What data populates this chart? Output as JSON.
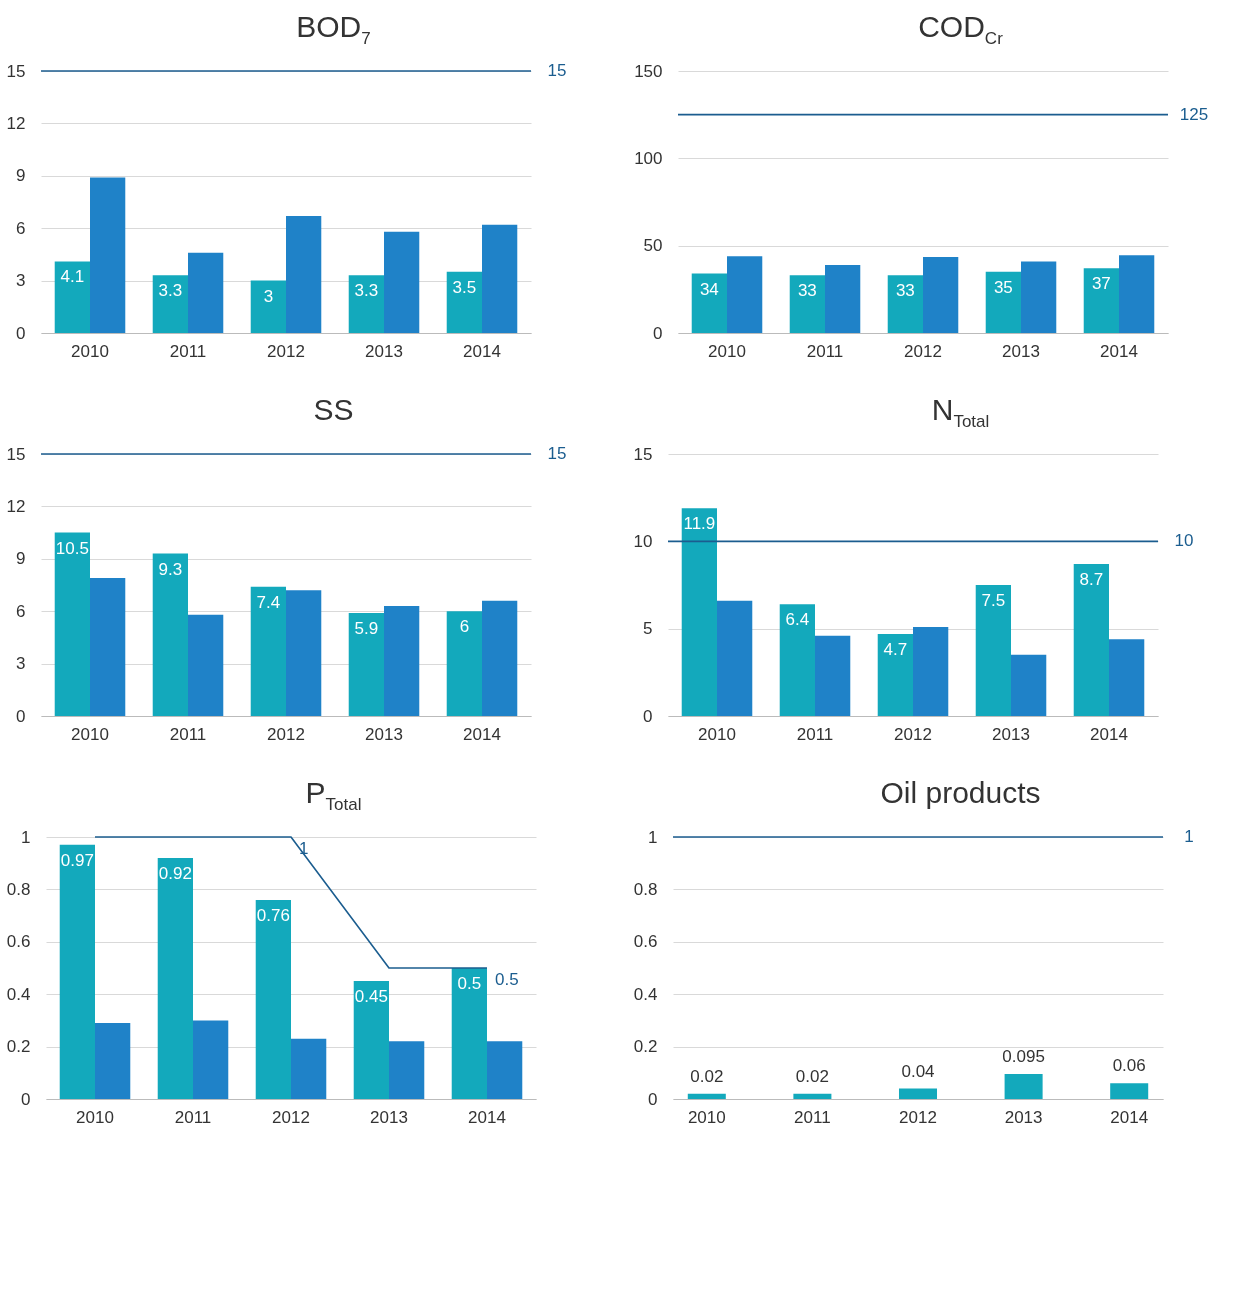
{
  "chart_data": [
    {
      "type": "bar",
      "title": "BOD$_{7}$",
      "categories": [
        "2010",
        "2011",
        "2012",
        "2013",
        "2014"
      ],
      "series": [
        {
          "color": "#13a9bc",
          "values": [
            4.1,
            3.3,
            3,
            3.3,
            3.5
          ],
          "value_labels": [
            "4.1",
            "3.3",
            "3",
            "3.3",
            "3.5"
          ]
        },
        {
          "color": "#1f82c8",
          "values": [
            8.9,
            4.6,
            6.7,
            5.8,
            6.2
          ]
        }
      ],
      "ylim": [
        0,
        15
      ],
      "yticks": [
        0,
        3,
        6,
        9,
        12,
        15
      ],
      "grid": "y",
      "ref_lines": [
        {
          "axis": "y",
          "value": 15,
          "label": "15",
          "color": "#1b5d8f"
        }
      ]
    },
    {
      "type": "bar",
      "title": "COD$_{Cr}$",
      "categories": [
        "2010",
        "2011",
        "2012",
        "2013",
        "2014"
      ],
      "series": [
        {
          "color": "#13a9bc",
          "values": [
            34,
            33,
            33,
            35,
            37
          ],
          "value_labels": [
            "34",
            "33",
            "33",
            "35",
            "37"
          ]
        },
        {
          "color": "#1f82c8",
          "values": [
            44,
            39,
            43.5,
            41,
            44.5
          ]
        }
      ],
      "ylim": [
        0,
        150
      ],
      "yticks": [
        0,
        50,
        100,
        150
      ],
      "grid": "y",
      "ref_lines": [
        {
          "axis": "y",
          "value": 125,
          "label": "125",
          "color": "#1b5d8f"
        }
      ]
    },
    {
      "type": "bar",
      "title": "SS",
      "categories": [
        "2010",
        "2011",
        "2012",
        "2013",
        "2014"
      ],
      "series": [
        {
          "color": "#13a9bc",
          "values": [
            10.5,
            9.3,
            7.4,
            5.9,
            6
          ],
          "value_labels": [
            "10.5",
            "9.3",
            "7.4",
            "5.9",
            "6"
          ]
        },
        {
          "color": "#1f82c8",
          "values": [
            7.9,
            5.8,
            7.2,
            6.3,
            6.6
          ]
        }
      ],
      "ylim": [
        0,
        15
      ],
      "yticks": [
        0,
        3,
        6,
        9,
        12,
        15
      ],
      "grid": "y",
      "ref_lines": [
        {
          "axis": "y",
          "value": 15,
          "label": "15",
          "color": "#1b5d8f"
        }
      ]
    },
    {
      "type": "bar",
      "title": "N$_{Total}$",
      "categories": [
        "2010",
        "2011",
        "2012",
        "2013",
        "2014"
      ],
      "series": [
        {
          "color": "#13a9bc",
          "values": [
            11.9,
            6.4,
            4.7,
            7.5,
            8.7
          ],
          "value_labels": [
            "11.9",
            "6.4",
            "4.7",
            "7.5",
            "8.7"
          ]
        },
        {
          "color": "#1f82c8",
          "values": [
            6.6,
            4.6,
            5.1,
            3.5,
            4.4
          ]
        }
      ],
      "ylim": [
        0,
        15
      ],
      "yticks": [
        0,
        5,
        10,
        15
      ],
      "grid": "y",
      "ref_lines": [
        {
          "axis": "y",
          "value": 10,
          "label": "10",
          "color": "#1b5d8f"
        }
      ]
    },
    {
      "type": "bar",
      "title": "P$_{Total}$",
      "categories": [
        "2010",
        "2011",
        "2012",
        "2013",
        "2014"
      ],
      "series": [
        {
          "color": "#13a9bc",
          "values": [
            0.97,
            0.92,
            0.76,
            0.45,
            0.5
          ],
          "value_labels": [
            "0.97",
            "0.92",
            "0.76",
            "0.45",
            "0.5"
          ]
        },
        {
          "color": "#1f82c8",
          "values": [
            0.29,
            0.3,
            0.23,
            0.22,
            0.22
          ]
        },
        {
          "type": "line",
          "color": "#1b5d8f",
          "values": [
            1,
            1,
            1,
            0.5,
            0.5
          ],
          "value_labels": [
            null,
            null,
            "1",
            null,
            "0.5"
          ]
        }
      ],
      "ylim": [
        0,
        1
      ],
      "yticks": [
        0,
        0.2,
        0.4,
        0.6,
        0.8,
        1
      ],
      "grid": "y"
    },
    {
      "type": "bar",
      "title": "Oil products",
      "categories": [
        "2010",
        "2011",
        "2012",
        "2013",
        "2014"
      ],
      "series": [
        {
          "color": "#13a9bc",
          "values": [
            0.02,
            0.02,
            0.04,
            0.095,
            0.06
          ],
          "value_labels": [
            "0.02",
            "0.02",
            "0.04",
            "0.095",
            "0.06"
          ]
        }
      ],
      "ylim": [
        0,
        1
      ],
      "yticks": [
        0,
        0.2,
        0.4,
        0.6,
        0.8,
        1
      ],
      "grid": "y",
      "ref_lines": [
        {
          "axis": "y",
          "value": 1,
          "label": "1",
          "color": "#1b5d8f"
        }
      ]
    }
  ]
}
